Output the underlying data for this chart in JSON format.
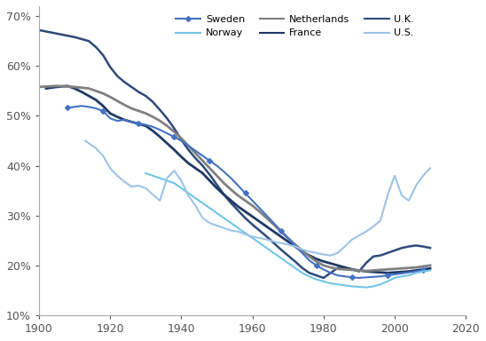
{
  "title": "",
  "legend": [
    "Sweden",
    "Norway",
    "Netherlands",
    "France",
    "U.K.",
    "U.S."
  ],
  "colors": {
    "Sweden": "#4472C4",
    "Norway": "#70C5E8",
    "Netherlands": "#7B7B7B",
    "France": "#1F3864",
    "U.K.": "#203864",
    "U.S.": "#9DC3E6"
  },
  "xlim": [
    1900,
    2020
  ],
  "ylim": [
    0.1,
    0.72
  ],
  "yticks": [
    0.1,
    0.2,
    0.3,
    0.4,
    0.5,
    0.6,
    0.7
  ],
  "xticks": [
    1900,
    1920,
    1940,
    1960,
    1980,
    2000,
    2020
  ],
  "Sweden": {
    "years": [
      1908,
      1910,
      1912,
      1914,
      1916,
      1918,
      1920,
      1922,
      1924,
      1926,
      1928,
      1930,
      1932,
      1934,
      1936,
      1938,
      1940,
      1942,
      1944,
      1946,
      1948,
      1950,
      1952,
      1954,
      1956,
      1958,
      1960,
      1962,
      1964,
      1966,
      1968,
      1970,
      1972,
      1974,
      1976,
      1978,
      1980,
      1982,
      1984,
      1986,
      1988,
      1990,
      1992,
      1994,
      1996,
      1998,
      2000,
      2002,
      2004,
      2006,
      2008
    ],
    "values": [
      0.516,
      0.518,
      0.52,
      0.518,
      0.515,
      0.51,
      0.495,
      0.49,
      0.492,
      0.488,
      0.485,
      0.482,
      0.478,
      0.472,
      0.465,
      0.458,
      0.45,
      0.44,
      0.43,
      0.42,
      0.41,
      0.4,
      0.388,
      0.375,
      0.36,
      0.345,
      0.33,
      0.315,
      0.3,
      0.285,
      0.27,
      0.255,
      0.24,
      0.225,
      0.21,
      0.2,
      0.192,
      0.185,
      0.18,
      0.178,
      0.176,
      0.175,
      0.176,
      0.177,
      0.178,
      0.18,
      0.182,
      0.184,
      0.186,
      0.188,
      0.19
    ]
  },
  "Norway": {
    "years": [
      1930,
      1932,
      1934,
      1936,
      1938,
      1940,
      1942,
      1944,
      1946,
      1948,
      1950,
      1952,
      1954,
      1956,
      1958,
      1960,
      1962,
      1964,
      1966,
      1968,
      1970,
      1972,
      1974,
      1976,
      1978,
      1980,
      1982,
      1984,
      1986,
      1988,
      1990,
      1992,
      1994,
      1996,
      1998,
      2000,
      2002,
      2004,
      2006,
      2008,
      2010
    ],
    "values": [
      0.385,
      0.38,
      0.375,
      0.37,
      0.365,
      0.355,
      0.345,
      0.335,
      0.325,
      0.315,
      0.305,
      0.295,
      0.285,
      0.275,
      0.265,
      0.255,
      0.245,
      0.235,
      0.225,
      0.215,
      0.205,
      0.195,
      0.185,
      0.178,
      0.172,
      0.168,
      0.164,
      0.162,
      0.16,
      0.158,
      0.157,
      0.156,
      0.158,
      0.162,
      0.168,
      0.175,
      0.178,
      0.18,
      0.185,
      0.188,
      0.19
    ]
  },
  "Netherlands": {
    "years": [
      1894,
      1900,
      1905,
      1910,
      1914,
      1916,
      1918,
      1920,
      1922,
      1924,
      1926,
      1928,
      1930,
      1932,
      1934,
      1936,
      1938,
      1940,
      1942,
      1944,
      1946,
      1948,
      1950,
      1952,
      1954,
      1956,
      1958,
      1960,
      1962,
      1964,
      1966,
      1968,
      1970,
      1972,
      1974,
      1976,
      1978,
      1980,
      1982,
      1984,
      1986,
      1988,
      1990,
      1992,
      1994,
      1996,
      1998,
      2000,
      2002,
      2004,
      2006,
      2008,
      2010
    ],
    "values": [
      0.555,
      0.558,
      0.56,
      0.558,
      0.555,
      0.55,
      0.545,
      0.538,
      0.53,
      0.522,
      0.515,
      0.51,
      0.505,
      0.498,
      0.49,
      0.48,
      0.468,
      0.455,
      0.44,
      0.425,
      0.41,
      0.395,
      0.38,
      0.365,
      0.352,
      0.34,
      0.33,
      0.32,
      0.308,
      0.295,
      0.282,
      0.268,
      0.255,
      0.242,
      0.23,
      0.218,
      0.208,
      0.2,
      0.196,
      0.193,
      0.192,
      0.191,
      0.19,
      0.189,
      0.19,
      0.191,
      0.192,
      0.193,
      0.194,
      0.195,
      0.196,
      0.198,
      0.2
    ]
  },
  "France": {
    "years": [
      1902,
      1905,
      1908,
      1910,
      1912,
      1914,
      1916,
      1918,
      1920,
      1922,
      1924,
      1926,
      1928,
      1930,
      1932,
      1934,
      1936,
      1938,
      1940,
      1942,
      1944,
      1946,
      1948,
      1950,
      1952,
      1954,
      1956,
      1958,
      1960,
      1962,
      1964,
      1966,
      1968,
      1970,
      1972,
      1974,
      1976,
      1978,
      1980,
      1982,
      1984,
      1986,
      1988,
      1990,
      1992,
      1994,
      1996,
      1998,
      2000,
      2002,
      2004,
      2006,
      2008,
      2010
    ],
    "values": [
      0.555,
      0.558,
      0.56,
      0.555,
      0.548,
      0.54,
      0.532,
      0.52,
      0.505,
      0.498,
      0.492,
      0.488,
      0.484,
      0.48,
      0.47,
      0.458,
      0.445,
      0.432,
      0.418,
      0.405,
      0.395,
      0.385,
      0.37,
      0.355,
      0.342,
      0.33,
      0.318,
      0.308,
      0.298,
      0.288,
      0.278,
      0.268,
      0.258,
      0.248,
      0.238,
      0.228,
      0.22,
      0.213,
      0.208,
      0.204,
      0.2,
      0.196,
      0.192,
      0.19,
      0.188,
      0.187,
      0.186,
      0.185,
      0.186,
      0.187,
      0.188,
      0.19,
      0.192,
      0.194
    ]
  },
  "U.K.": {
    "years": [
      1895,
      1900,
      1905,
      1910,
      1914,
      1916,
      1918,
      1920,
      1922,
      1924,
      1926,
      1928,
      1930,
      1932,
      1934,
      1936,
      1938,
      1940,
      1942,
      1944,
      1946,
      1948,
      1950,
      1952,
      1954,
      1956,
      1958,
      1960,
      1962,
      1964,
      1966,
      1968,
      1970,
      1972,
      1974,
      1976,
      1978,
      1980,
      1982,
      1984,
      1986,
      1988,
      1990,
      1992,
      1994,
      1996,
      1998,
      2000,
      2002,
      2004,
      2006,
      2008,
      2010
    ],
    "values": [
      0.68,
      0.672,
      0.665,
      0.658,
      0.65,
      0.638,
      0.622,
      0.598,
      0.58,
      0.568,
      0.558,
      0.548,
      0.54,
      0.528,
      0.512,
      0.495,
      0.475,
      0.452,
      0.432,
      0.415,
      0.4,
      0.382,
      0.362,
      0.342,
      0.325,
      0.31,
      0.295,
      0.282,
      0.27,
      0.258,
      0.245,
      0.232,
      0.22,
      0.208,
      0.195,
      0.185,
      0.18,
      0.175,
      0.185,
      0.195,
      0.195,
      0.192,
      0.188,
      0.205,
      0.218,
      0.22,
      0.225,
      0.23,
      0.235,
      0.238,
      0.24,
      0.238,
      0.235
    ]
  },
  "U.S.": {
    "years": [
      1913,
      1916,
      1918,
      1920,
      1922,
      1924,
      1926,
      1928,
      1930,
      1932,
      1934,
      1936,
      1938,
      1940,
      1942,
      1944,
      1946,
      1948,
      1950,
      1952,
      1954,
      1956,
      1958,
      1960,
      1962,
      1964,
      1966,
      1968,
      1970,
      1972,
      1974,
      1976,
      1978,
      1980,
      1982,
      1984,
      1986,
      1988,
      1990,
      1992,
      1994,
      1996,
      1998,
      2000,
      2002,
      2004,
      2006,
      2008,
      2010
    ],
    "values": [
      0.45,
      0.435,
      0.42,
      0.395,
      0.38,
      0.368,
      0.358,
      0.36,
      0.355,
      0.342,
      0.33,
      0.375,
      0.39,
      0.37,
      0.34,
      0.32,
      0.295,
      0.285,
      0.28,
      0.275,
      0.27,
      0.268,
      0.262,
      0.258,
      0.255,
      0.252,
      0.248,
      0.245,
      0.242,
      0.238,
      0.232,
      0.228,
      0.225,
      0.222,
      0.22,
      0.225,
      0.238,
      0.252,
      0.26,
      0.268,
      0.278,
      0.29,
      0.34,
      0.38,
      0.34,
      0.33,
      0.36,
      0.38,
      0.395
    ]
  }
}
